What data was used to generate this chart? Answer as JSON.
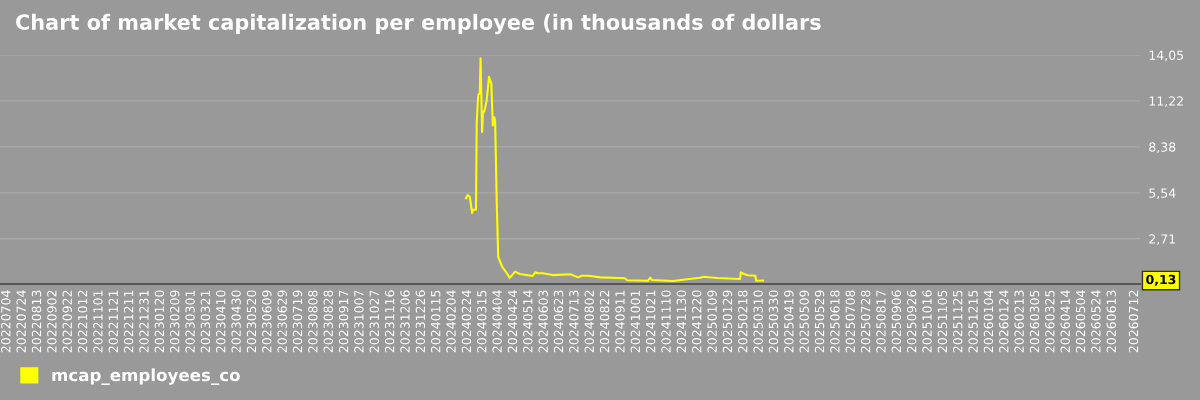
{
  "chart_data": {
    "type": "line",
    "title": "Chart of market capitalization per employee (in thousands of dollars",
    "series": [
      {
        "name": "mcap_employees_co",
        "color": "#ffff00",
        "x": [
          "2024-02-22",
          "2024-02-24",
          "2024-02-27",
          "2024-03-01",
          "2024-03-02",
          "2024-03-06",
          "2024-03-07",
          "2024-03-09",
          "2024-03-11",
          "2024-03-12",
          "2024-03-14",
          "2024-03-15",
          "2024-03-17",
          "2024-03-20",
          "2024-03-23",
          "2024-03-26",
          "2024-03-28",
          "2024-03-30",
          "2024-03-31",
          "2024-04-02",
          "2024-04-04",
          "2024-04-09",
          "2024-04-15",
          "2024-04-19",
          "2024-04-26",
          "2024-05-02",
          "2024-05-19",
          "2024-05-22",
          "2024-05-26",
          "2024-06-01",
          "2024-06-14",
          "2024-07-07",
          "2024-07-17",
          "2024-07-22",
          "2024-07-30",
          "2024-08-15",
          "2024-09-16",
          "2024-09-19",
          "2024-10-16",
          "2024-10-19",
          "2024-10-21",
          "2024-11-18",
          "2024-12-06",
          "2024-12-23",
          "2024-12-27",
          "2025-01-14",
          "2025-02-13",
          "2025-02-14",
          "2025-02-19",
          "2025-02-23",
          "2025-03-05",
          "2025-03-06",
          "2025-03-15"
        ],
        "values": [
          5.2,
          5.4,
          5.3,
          4.3,
          4.5,
          4.5,
          9.9,
          11.6,
          11.7,
          13.85,
          9.3,
          10.45,
          10.6,
          11.25,
          12.7,
          12.3,
          9.7,
          10.2,
          10.0,
          5.1,
          1.6,
          1.0,
          0.6,
          0.3,
          0.68,
          0.54,
          0.41,
          0.64,
          0.58,
          0.58,
          0.47,
          0.52,
          0.33,
          0.43,
          0.43,
          0.33,
          0.27,
          0.15,
          0.12,
          0.31,
          0.17,
          0.1,
          0.21,
          0.31,
          0.37,
          0.29,
          0.23,
          0.64,
          0.52,
          0.46,
          0.43,
          0.12,
          0.13
        ]
      }
    ],
    "xlim": [
      "2022-06-25",
      "2026-07-19"
    ],
    "ylim": [
      -0.08,
      14.05
    ],
    "yticks": [
      {
        "value": 2.71,
        "label": "2,71"
      },
      {
        "value": 5.54,
        "label": "5,54"
      },
      {
        "value": 8.38,
        "label": "8,38"
      },
      {
        "value": 11.22,
        "label": "11,22"
      },
      {
        "value": 14.05,
        "label": "14,05"
      }
    ],
    "xticks": [
      {
        "value": "2022-07-04",
        "label": "20220704"
      },
      {
        "value": "2022-07-24",
        "label": "20220724"
      },
      {
        "value": "2022-08-13",
        "label": "20220813"
      },
      {
        "value": "2022-09-02",
        "label": "20220902"
      },
      {
        "value": "2022-09-22",
        "label": "20220922"
      },
      {
        "value": "2022-10-12",
        "label": "20221012"
      },
      {
        "value": "2022-11-01",
        "label": "20221101"
      },
      {
        "value": "2022-11-21",
        "label": "20221121"
      },
      {
        "value": "2022-12-11",
        "label": "20221211"
      },
      {
        "value": "2022-12-31",
        "label": "20221231"
      },
      {
        "value": "2023-01-20",
        "label": "20230120"
      },
      {
        "value": "2023-02-09",
        "label": "20230209"
      },
      {
        "value": "2023-03-01",
        "label": "20230301"
      },
      {
        "value": "2023-03-21",
        "label": "20230321"
      },
      {
        "value": "2023-04-10",
        "label": "20230410"
      },
      {
        "value": "2023-04-30",
        "label": "20230430"
      },
      {
        "value": "2023-05-20",
        "label": "20230520"
      },
      {
        "value": "2023-06-09",
        "label": "20230609"
      },
      {
        "value": "2023-06-29",
        "label": "20230629"
      },
      {
        "value": "2023-07-19",
        "label": "20230719"
      },
      {
        "value": "2023-08-08",
        "label": "20230808"
      },
      {
        "value": "2023-08-28",
        "label": "20230828"
      },
      {
        "value": "2023-09-17",
        "label": "20230917"
      },
      {
        "value": "2023-10-07",
        "label": "20231007"
      },
      {
        "value": "2023-10-27",
        "label": "20231027"
      },
      {
        "value": "2023-11-16",
        "label": "20231116"
      },
      {
        "value": "2023-12-06",
        "label": "20231206"
      },
      {
        "value": "2023-12-26",
        "label": "20231226"
      },
      {
        "value": "2024-01-15",
        "label": "20240115"
      },
      {
        "value": "2024-02-04",
        "label": "20240204"
      },
      {
        "value": "2024-02-24",
        "label": "20240224"
      },
      {
        "value": "2024-03-15",
        "label": "20240315"
      },
      {
        "value": "2024-04-04",
        "label": "20240404"
      },
      {
        "value": "2024-04-24",
        "label": "20240424"
      },
      {
        "value": "2024-05-14",
        "label": "20240514"
      },
      {
        "value": "2024-06-03",
        "label": "20240603"
      },
      {
        "value": "2024-06-23",
        "label": "20240623"
      },
      {
        "value": "2024-07-13",
        "label": "20240713"
      },
      {
        "value": "2024-08-02",
        "label": "20240802"
      },
      {
        "value": "2024-08-22",
        "label": "20240822"
      },
      {
        "value": "2024-09-11",
        "label": "20240911"
      },
      {
        "value": "2024-10-01",
        "label": "20241001"
      },
      {
        "value": "2024-10-21",
        "label": "20241021"
      },
      {
        "value": "2024-11-10",
        "label": "20241110"
      },
      {
        "value": "2024-11-30",
        "label": "20241130"
      },
      {
        "value": "2024-12-20",
        "label": "20241220"
      },
      {
        "value": "2025-01-09",
        "label": "20250109"
      },
      {
        "value": "2025-01-29",
        "label": "20250129"
      },
      {
        "value": "2025-02-18",
        "label": "20250218"
      },
      {
        "value": "2025-03-10",
        "label": "20250310"
      },
      {
        "value": "2025-03-30",
        "label": "20250330"
      },
      {
        "value": "2025-04-19",
        "label": "20250419"
      },
      {
        "value": "2025-05-09",
        "label": "20250509"
      },
      {
        "value": "2025-05-29",
        "label": "20250529"
      },
      {
        "value": "2025-06-18",
        "label": "20250618"
      },
      {
        "value": "2025-07-08",
        "label": "20250708"
      },
      {
        "value": "2025-07-28",
        "label": "20250728"
      },
      {
        "value": "2025-08-17",
        "label": "20250817"
      },
      {
        "value": "2025-09-06",
        "label": "20250906"
      },
      {
        "value": "2025-09-26",
        "label": "20250926"
      },
      {
        "value": "2025-10-16",
        "label": "20251016"
      },
      {
        "value": "2025-11-05",
        "label": "20251105"
      },
      {
        "value": "2025-11-25",
        "label": "20251125"
      },
      {
        "value": "2025-12-15",
        "label": "20251215"
      },
      {
        "value": "2026-01-04",
        "label": "20260104"
      },
      {
        "value": "2026-01-24",
        "label": "20260124"
      },
      {
        "value": "2026-02-13",
        "label": "20260213"
      },
      {
        "value": "2026-03-05",
        "label": "20260305"
      },
      {
        "value": "2026-03-25",
        "label": "20260325"
      },
      {
        "value": "2026-04-14",
        "label": "20260414"
      },
      {
        "value": "2026-05-04",
        "label": "20260504"
      },
      {
        "value": "2026-05-24",
        "label": "20260524"
      },
      {
        "value": "2026-06-13",
        "label": "20260613"
      },
      {
        "value": "2026-07-12",
        "label": "20260712"
      }
    ],
    "annotations": [
      "0,13"
    ],
    "grid": "y",
    "legend": "bottom left",
    "marker": "none",
    "line_style": "solid"
  }
}
